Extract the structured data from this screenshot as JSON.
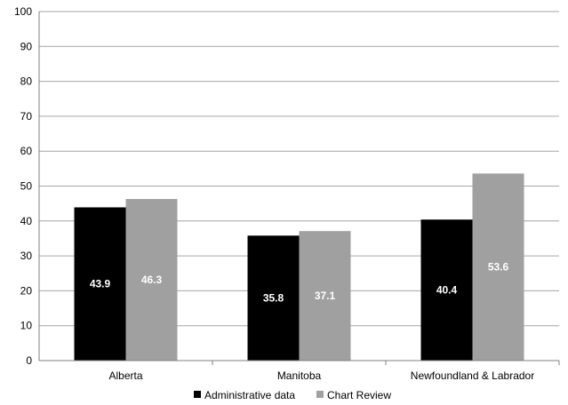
{
  "chart_data": {
    "type": "bar",
    "categories": [
      "Alberta",
      "Manitoba",
      "Newfoundland & Labrador"
    ],
    "series": [
      {
        "name": "Administrative data",
        "values": [
          43.9,
          35.8,
          40.4
        ],
        "color": "#000000"
      },
      {
        "name": "Chart Review",
        "values": [
          46.3,
          37.1,
          53.6
        ],
        "color": "#a0a0a0"
      }
    ],
    "title": "",
    "xlabel": "",
    "ylabel": "",
    "ylim": [
      0,
      100
    ],
    "yticks": [
      0,
      10,
      20,
      30,
      40,
      50,
      60,
      70,
      80,
      90,
      100
    ],
    "grid": true,
    "legend_position": "bottom",
    "data_labels": true
  },
  "colors": {
    "grid": "#a6a6a6",
    "axis": "#808080"
  }
}
